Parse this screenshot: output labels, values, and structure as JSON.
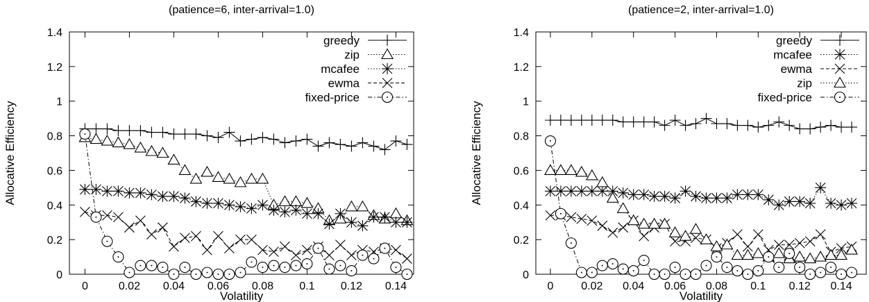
{
  "chart_data": [
    {
      "type": "line",
      "title": "(patience=6, inter-arrival=1.0)",
      "xlabel": "Volatility",
      "ylabel": "Allocative Efficiency",
      "xlim": [
        -0.007,
        0.148
      ],
      "ylim": [
        0,
        1.4
      ],
      "xticks": [
        "0",
        "0.02",
        "0.04",
        "0.06",
        "0.08",
        "0.1",
        "0.12",
        "0.14"
      ],
      "xtick_values": [
        0,
        0.02,
        0.04,
        0.06,
        0.08,
        0.1,
        0.12,
        0.14
      ],
      "yticks": [
        "0",
        "0.2",
        "0.4",
        "0.6",
        "0.8",
        "1",
        "1.2",
        "1.4"
      ],
      "ytick_values": [
        0,
        0.2,
        0.4,
        0.6,
        0.8,
        1.0,
        1.2,
        1.4
      ],
      "grid": false,
      "legend_position": "top-right",
      "series": [
        {
          "name": "greedy",
          "marker": "plus",
          "dash": "solid",
          "x": [
            0,
            0.005,
            0.01,
            0.015,
            0.02,
            0.025,
            0.03,
            0.035,
            0.04,
            0.045,
            0.05,
            0.055,
            0.06,
            0.065,
            0.07,
            0.075,
            0.08,
            0.085,
            0.09,
            0.095,
            0.1,
            0.105,
            0.11,
            0.115,
            0.12,
            0.125,
            0.13,
            0.135,
            0.14,
            0.145
          ],
          "y": [
            0.84,
            0.84,
            0.84,
            0.83,
            0.83,
            0.83,
            0.82,
            0.82,
            0.81,
            0.81,
            0.81,
            0.8,
            0.79,
            0.82,
            0.77,
            0.78,
            0.79,
            0.78,
            0.76,
            0.77,
            0.78,
            0.74,
            0.76,
            0.75,
            0.74,
            0.76,
            0.74,
            0.72,
            0.77,
            0.75
          ]
        },
        {
          "name": "zip",
          "marker": "triangle",
          "dash": "dotted",
          "x": [
            0,
            0.005,
            0.01,
            0.015,
            0.02,
            0.025,
            0.03,
            0.035,
            0.04,
            0.045,
            0.05,
            0.055,
            0.06,
            0.065,
            0.07,
            0.075,
            0.08,
            0.085,
            0.09,
            0.095,
            0.1,
            0.105,
            0.11,
            0.115,
            0.12,
            0.125,
            0.13,
            0.135,
            0.14,
            0.145
          ],
          "y": [
            0.79,
            0.78,
            0.77,
            0.76,
            0.75,
            0.73,
            0.71,
            0.7,
            0.66,
            0.6,
            0.55,
            0.59,
            0.56,
            0.55,
            0.53,
            0.55,
            0.55,
            0.4,
            0.42,
            0.42,
            0.41,
            0.38,
            0.31,
            0.32,
            0.39,
            0.39,
            0.34,
            0.32,
            0.35,
            0.31
          ]
        },
        {
          "name": "mcafee",
          "marker": "star",
          "dash": "dotted",
          "x": [
            0,
            0.005,
            0.01,
            0.015,
            0.02,
            0.025,
            0.03,
            0.035,
            0.04,
            0.045,
            0.05,
            0.055,
            0.06,
            0.065,
            0.07,
            0.075,
            0.08,
            0.085,
            0.09,
            0.095,
            0.1,
            0.105,
            0.11,
            0.115,
            0.12,
            0.125,
            0.13,
            0.135,
            0.14,
            0.145
          ],
          "y": [
            0.49,
            0.49,
            0.48,
            0.48,
            0.47,
            0.47,
            0.46,
            0.45,
            0.45,
            0.44,
            0.42,
            0.41,
            0.41,
            0.4,
            0.39,
            0.38,
            0.4,
            0.37,
            0.36,
            0.37,
            0.35,
            0.35,
            0.29,
            0.35,
            0.3,
            0.28,
            0.33,
            0.33,
            0.3,
            0.3
          ]
        },
        {
          "name": "ewma",
          "marker": "cross",
          "dash": "dashed",
          "x": [
            0,
            0.005,
            0.01,
            0.015,
            0.02,
            0.025,
            0.03,
            0.035,
            0.04,
            0.045,
            0.05,
            0.055,
            0.06,
            0.065,
            0.07,
            0.075,
            0.08,
            0.085,
            0.09,
            0.095,
            0.1,
            0.105,
            0.11,
            0.115,
            0.12,
            0.125,
            0.13,
            0.135,
            0.14,
            0.145
          ],
          "y": [
            0.36,
            0.34,
            0.34,
            0.33,
            0.27,
            0.31,
            0.23,
            0.27,
            0.16,
            0.21,
            0.22,
            0.14,
            0.22,
            0.15,
            0.2,
            0.2,
            0.14,
            0.13,
            0.16,
            0.11,
            0.14,
            0.16,
            0.11,
            0.17,
            0.11,
            0.14,
            0.13,
            0.15,
            0.14,
            0.09
          ]
        },
        {
          "name": "fixed-price",
          "marker": "circle",
          "dash": "dashdot",
          "x": [
            0,
            0.005,
            0.01,
            0.015,
            0.02,
            0.025,
            0.03,
            0.035,
            0.04,
            0.045,
            0.05,
            0.055,
            0.06,
            0.065,
            0.07,
            0.075,
            0.08,
            0.085,
            0.09,
            0.095,
            0.1,
            0.105,
            0.11,
            0.115,
            0.12,
            0.125,
            0.13,
            0.135,
            0.14,
            0.145
          ],
          "y": [
            0.81,
            0.33,
            0.19,
            0.1,
            0.01,
            0.05,
            0.05,
            0.04,
            0.0,
            0.04,
            0.0,
            0.01,
            0.0,
            0.0,
            0.01,
            0.07,
            0.04,
            0.05,
            0.04,
            0.05,
            0.06,
            0.15,
            0.03,
            0.05,
            0.02,
            0.11,
            0.09,
            0.15,
            0.04,
            0.0
          ]
        }
      ]
    },
    {
      "type": "line",
      "title": "(patience=2, inter-arrival=1.0)",
      "xlabel": "Volatility",
      "ylabel": "Allocative Efficiency",
      "xlim": [
        -0.007,
        0.152
      ],
      "ylim": [
        0,
        1.4
      ],
      "xticks": [
        "0",
        "0.02",
        "0.04",
        "0.06",
        "0.08",
        "0.1",
        "0.12",
        "0.14"
      ],
      "xtick_values": [
        0,
        0.02,
        0.04,
        0.06,
        0.08,
        0.1,
        0.12,
        0.14
      ],
      "yticks": [
        "0",
        "0.2",
        "0.4",
        "0.6",
        "0.8",
        "1",
        "1.2",
        "1.4"
      ],
      "ytick_values": [
        0,
        0.2,
        0.4,
        0.6,
        0.8,
        1.0,
        1.2,
        1.4
      ],
      "grid": false,
      "legend_position": "top-right",
      "series": [
        {
          "name": "greedy",
          "marker": "plus",
          "dash": "solid",
          "x": [
            0,
            0.005,
            0.01,
            0.015,
            0.02,
            0.025,
            0.03,
            0.035,
            0.04,
            0.045,
            0.05,
            0.055,
            0.06,
            0.065,
            0.07,
            0.075,
            0.08,
            0.085,
            0.09,
            0.095,
            0.1,
            0.105,
            0.11,
            0.115,
            0.12,
            0.125,
            0.13,
            0.135,
            0.14,
            0.145
          ],
          "y": [
            0.89,
            0.89,
            0.89,
            0.89,
            0.89,
            0.89,
            0.89,
            0.88,
            0.88,
            0.88,
            0.88,
            0.86,
            0.89,
            0.86,
            0.87,
            0.9,
            0.87,
            0.87,
            0.86,
            0.86,
            0.85,
            0.86,
            0.88,
            0.86,
            0.84,
            0.84,
            0.85,
            0.86,
            0.85,
            0.85
          ]
        },
        {
          "name": "mcafee",
          "marker": "star",
          "dash": "dotted",
          "x": [
            0,
            0.005,
            0.01,
            0.015,
            0.02,
            0.025,
            0.03,
            0.035,
            0.04,
            0.045,
            0.05,
            0.055,
            0.06,
            0.065,
            0.07,
            0.075,
            0.08,
            0.085,
            0.09,
            0.095,
            0.1,
            0.105,
            0.11,
            0.115,
            0.12,
            0.125,
            0.13,
            0.135,
            0.14,
            0.145
          ],
          "y": [
            0.48,
            0.48,
            0.48,
            0.48,
            0.48,
            0.48,
            0.48,
            0.47,
            0.46,
            0.46,
            0.45,
            0.45,
            0.44,
            0.48,
            0.45,
            0.44,
            0.44,
            0.44,
            0.46,
            0.46,
            0.46,
            0.43,
            0.4,
            0.42,
            0.42,
            0.41,
            0.5,
            0.41,
            0.4,
            0.41
          ]
        },
        {
          "name": "ewma",
          "marker": "cross",
          "dash": "dashed",
          "x": [
            0,
            0.005,
            0.01,
            0.015,
            0.02,
            0.025,
            0.03,
            0.035,
            0.04,
            0.045,
            0.05,
            0.055,
            0.06,
            0.065,
            0.07,
            0.075,
            0.08,
            0.085,
            0.09,
            0.095,
            0.1,
            0.105,
            0.11,
            0.115,
            0.12,
            0.125,
            0.13,
            0.135,
            0.14,
            0.145
          ],
          "y": [
            0.34,
            0.34,
            0.33,
            0.32,
            0.31,
            0.28,
            0.24,
            0.27,
            0.31,
            0.22,
            0.27,
            0.29,
            0.19,
            0.19,
            0.21,
            0.2,
            0.15,
            0.18,
            0.23,
            0.16,
            0.23,
            0.14,
            0.17,
            0.17,
            0.18,
            0.19,
            0.23,
            0.13,
            0.15,
            0.16
          ]
        },
        {
          "name": "zip",
          "marker": "triangle",
          "dash": "dotted",
          "x": [
            0,
            0.005,
            0.01,
            0.015,
            0.02,
            0.025,
            0.03,
            0.035,
            0.04,
            0.045,
            0.05,
            0.055,
            0.06,
            0.065,
            0.07,
            0.075,
            0.08,
            0.085,
            0.09,
            0.095,
            0.1,
            0.105,
            0.11,
            0.115,
            0.12,
            0.125,
            0.13,
            0.135,
            0.14,
            0.145
          ],
          "y": [
            0.6,
            0.6,
            0.6,
            0.59,
            0.57,
            0.53,
            0.44,
            0.38,
            0.31,
            0.29,
            0.29,
            0.29,
            0.24,
            0.22,
            0.26,
            0.2,
            0.16,
            0.17,
            0.11,
            0.11,
            0.12,
            0.1,
            0.12,
            0.09,
            0.1,
            0.09,
            0.1,
            0.11,
            0.11,
            0.14
          ]
        },
        {
          "name": "fixed-price",
          "marker": "circle",
          "dash": "dashdot",
          "x": [
            0,
            0.005,
            0.01,
            0.015,
            0.02,
            0.025,
            0.03,
            0.035,
            0.04,
            0.045,
            0.05,
            0.055,
            0.06,
            0.065,
            0.07,
            0.075,
            0.08,
            0.085,
            0.09,
            0.095,
            0.1,
            0.105,
            0.11,
            0.115,
            0.12,
            0.125,
            0.13,
            0.135,
            0.14,
            0.145
          ],
          "y": [
            0.77,
            0.35,
            0.18,
            0.01,
            0.01,
            0.05,
            0.06,
            0.03,
            0.02,
            0.08,
            0.0,
            0.0,
            0.04,
            0.0,
            0.0,
            0.05,
            0.1,
            0.04,
            0.02,
            0.0,
            0.02,
            0.1,
            0.04,
            0.12,
            0.04,
            0.0,
            0.01,
            0.04,
            0.0,
            0.01
          ]
        }
      ]
    }
  ]
}
